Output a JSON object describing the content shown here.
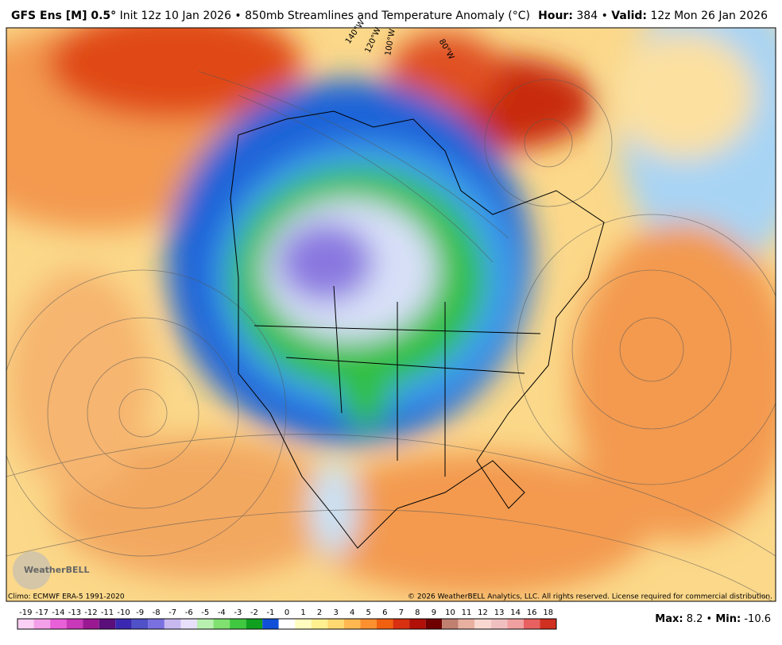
{
  "header": {
    "model": "GFS Ens [M] 0.5°",
    "run": "Init 12z 10 Jan 2026 • 850mb Streamlines and Temperature Anomaly (°C)",
    "hour_label": "Hour:",
    "hour_value": "384",
    "separator": "•",
    "valid_label": "Valid:",
    "valid_value": "12z Mon 26 Jan 2026"
  },
  "map": {
    "longitude_labels": [
      "140°W",
      "120°W",
      "100°W",
      "80°W"
    ],
    "logo": "WeatherBELL",
    "climo": "Climo: ECMWF ERA-5 1991-2020",
    "copyright": "© 2026 WeatherBELL Analytics, LLC. All rights reserved. License required for commercial distribution."
  },
  "colorbar": {
    "ticks": [
      -19,
      -17,
      -14,
      -13,
      -12,
      -11,
      -10,
      -9,
      -8,
      -7,
      -6,
      -5,
      -4,
      -3,
      -2,
      -1,
      0,
      1,
      2,
      3,
      4,
      5,
      6,
      7,
      8,
      9,
      10,
      11,
      12,
      13,
      14,
      16,
      18
    ],
    "colors": [
      "#fbd0f4",
      "#f4a0e8",
      "#e860d8",
      "#c838b8",
      "#9a1890",
      "#5a0f7a",
      "#3a28b0",
      "#5050c8",
      "#7a70e0",
      "#c8b8f0",
      "#e8e0fa",
      "#b8f0b0",
      "#80e070",
      "#40c840",
      "#10a020",
      "#1050d8",
      "#ffffff",
      "#fffcc0",
      "#fff090",
      "#ffd870",
      "#ffb850",
      "#ff9030",
      "#f06010",
      "#d83010",
      "#b01008",
      "#700000",
      "#c08070",
      "#e8b0a0",
      "#f8d8d0",
      "#f0c0c0",
      "#f0a0a0",
      "#e86060",
      "#d03020"
    ]
  },
  "stats": {
    "max_label": "Max:",
    "max_value": 8.2,
    "separator": "•",
    "min_label": "Min:",
    "min_value": -10.6
  }
}
